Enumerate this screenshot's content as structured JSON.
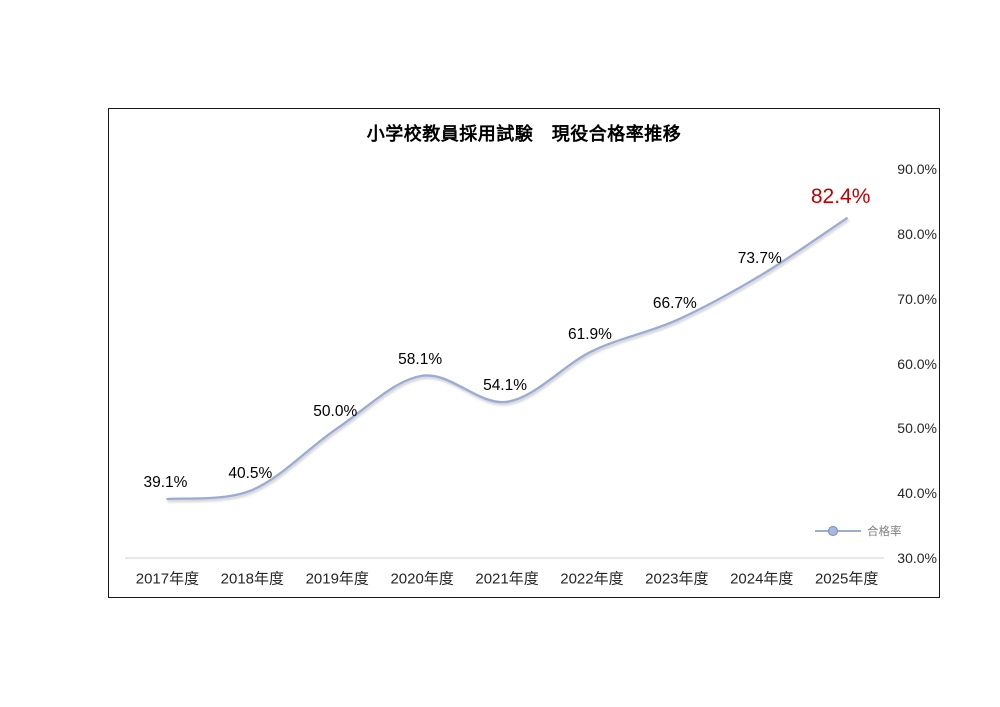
{
  "chart": {
    "title": "小学校教員採用試験　現役合格率推移",
    "legend": {
      "label": "合格率"
    },
    "colors": {
      "line": "#9aabd4",
      "line_shadow": "rgba(128,128,128,0.45)",
      "legend_marker_fill": "#a9b8dc",
      "legend_marker_stroke": "#8098c8",
      "legend_text": "#808080",
      "axis_line": "#d9d9d9",
      "tick_text": "#262626",
      "data_label": "#000000",
      "highlight_label": "#c00000",
      "frame_border": "#181818",
      "title_text": "#000000",
      "background": "#ffffff"
    }
  },
  "chart_data": {
    "type": "line",
    "title": "小学校教員採用試験　現役合格率推移",
    "categories": [
      "2017年度",
      "2018年度",
      "2019年度",
      "2020年度",
      "2021年度",
      "2022年度",
      "2023年度",
      "2024年度",
      "2025年度"
    ],
    "series": [
      {
        "name": "合格率",
        "values": [
          39.1,
          40.5,
          50.0,
          58.1,
          54.1,
          61.9,
          66.7,
          73.7,
          82.4
        ]
      }
    ],
    "data_labels": [
      "39.1%",
      "40.5%",
      "50.0%",
      "58.1%",
      "54.1%",
      "61.9%",
      "66.7%",
      "73.7%",
      "82.4%"
    ],
    "highlight_last_label": true,
    "xlabel": "",
    "ylabel": "",
    "ylim": [
      30,
      90
    ],
    "ytick_step": 10,
    "ytick_labels": [
      "30.0%",
      "40.0%",
      "50.0%",
      "60.0%",
      "70.0%",
      "80.0%",
      "90.0%"
    ],
    "yaxis_side": "right",
    "grid": false,
    "smooth_line": true,
    "legend_position": "inside-bottom-right"
  }
}
